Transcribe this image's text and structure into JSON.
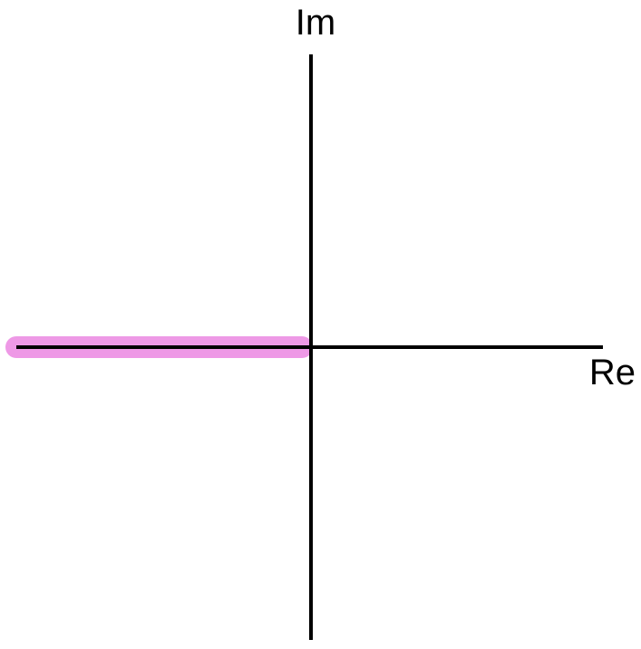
{
  "diagram": {
    "imaginary_axis_label": "Im",
    "real_axis_label": "Re",
    "colors": {
      "axis": "#000000",
      "highlight": "#EE99E6",
      "background": "#FFFFFF"
    },
    "highlight": {
      "description_visible": false,
      "along_axis": "real",
      "side": "negative"
    }
  }
}
